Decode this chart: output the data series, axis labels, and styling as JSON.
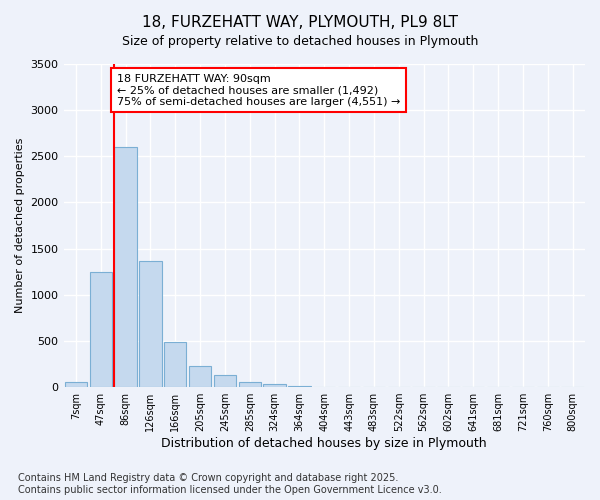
{
  "title": "18, FURZEHATT WAY, PLYMOUTH, PL9 8LT",
  "subtitle": "Size of property relative to detached houses in Plymouth",
  "xlabel": "Distribution of detached houses by size in Plymouth",
  "ylabel": "Number of detached properties",
  "categories": [
    "7sqm",
    "47sqm",
    "86sqm",
    "126sqm",
    "166sqm",
    "205sqm",
    "245sqm",
    "285sqm",
    "324sqm",
    "364sqm",
    "404sqm",
    "443sqm",
    "483sqm",
    "522sqm",
    "562sqm",
    "602sqm",
    "641sqm",
    "681sqm",
    "721sqm",
    "760sqm",
    "800sqm"
  ],
  "values": [
    60,
    1250,
    2600,
    1370,
    490,
    230,
    130,
    60,
    30,
    10,
    5,
    2,
    1,
    0,
    0,
    0,
    0,
    0,
    0,
    0,
    0
  ],
  "bar_color": "#c5d9ee",
  "bar_edge_color": "#7bafd4",
  "vline_x": 2,
  "vline_color": "red",
  "annotation_text": "18 FURZEHATT WAY: 90sqm\n← 25% of detached houses are smaller (1,492)\n75% of semi-detached houses are larger (4,551) →",
  "annotation_box_color": "red",
  "ylim": [
    0,
    3500
  ],
  "yticks": [
    0,
    500,
    1000,
    1500,
    2000,
    2500,
    3000,
    3500
  ],
  "footnote": "Contains HM Land Registry data © Crown copyright and database right 2025.\nContains public sector information licensed under the Open Government Licence v3.0.",
  "bg_color": "#eef2fa",
  "plot_bg_color": "#eef2fa",
  "grid_color": "#ffffff",
  "title_fontsize": 11,
  "label_fontsize": 8,
  "footnote_fontsize": 7
}
